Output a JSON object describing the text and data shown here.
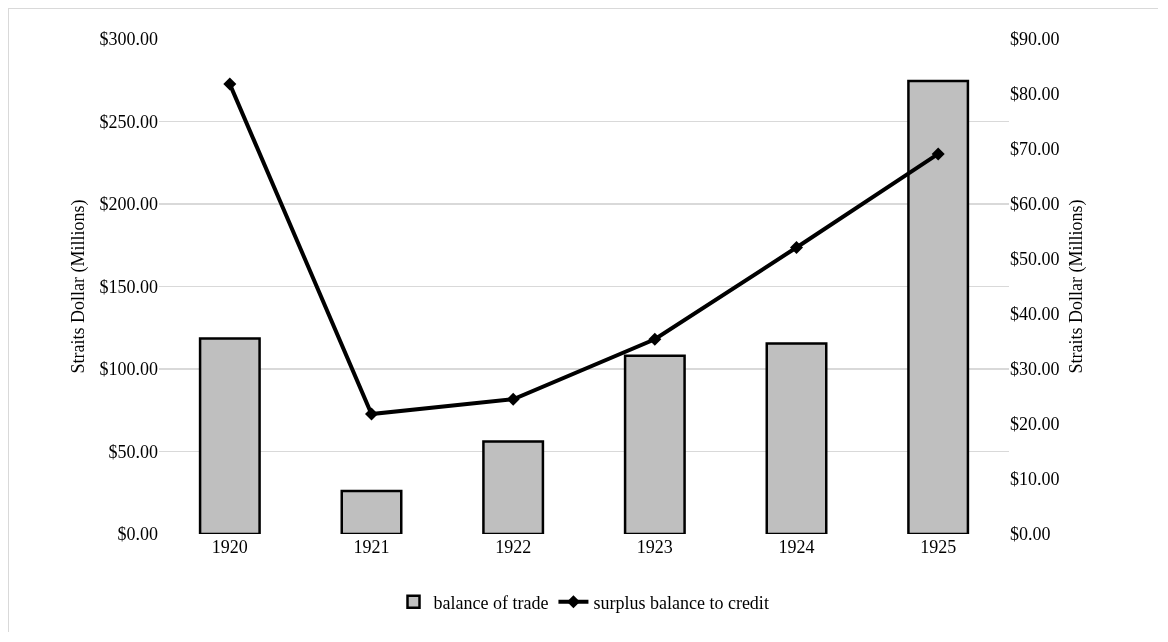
{
  "chart_data": {
    "type": "bar",
    "categories": [
      "1920",
      "1921",
      "1922",
      "1923",
      "1924",
      "1925"
    ],
    "ylabel": "Straits Dollar (Millions)",
    "y2label": "Straits Dollar (Millions)",
    "series": [
      {
        "name": "balance of trade",
        "color": "#bfbfbf",
        "values": [
          118.5,
          26,
          56,
          108,
          115.5,
          274.5
        ]
      },
      {
        "name": "surplus balance to credit",
        "type": "line",
        "axis": "y2",
        "color": "#000000",
        "marker": "diamond",
        "values": [
          81.8,
          21.8,
          24.5,
          35.4,
          52.1,
          69.1
        ]
      }
    ],
    "ylim": [
      0,
      300
    ],
    "yticks": [
      {
        "value": 0,
        "label": "$0.00"
      },
      {
        "value": 50,
        "label": "$50.00"
      },
      {
        "value": 100,
        "label": "$100.00"
      },
      {
        "value": 150,
        "label": "$150.00"
      },
      {
        "value": 200,
        "label": "$200.00"
      },
      {
        "value": 250,
        "label": "$250.00"
      },
      {
        "value": 300,
        "label": "$300.00"
      }
    ],
    "y2lim": [
      0,
      90
    ],
    "y2ticks": [
      {
        "value": 0,
        "label": "$0.00"
      },
      {
        "value": 10,
        "label": "$10.00"
      },
      {
        "value": 20,
        "label": "$20.00"
      },
      {
        "value": 30,
        "label": "$30.00"
      },
      {
        "value": 40,
        "label": "$40.00"
      },
      {
        "value": 50,
        "label": "$50.00"
      },
      {
        "value": 60,
        "label": "$60.00"
      },
      {
        "value": 70,
        "label": "$70.00"
      },
      {
        "value": 80,
        "label": "$80.00"
      },
      {
        "value": 90,
        "label": "$90.00"
      }
    ],
    "grid": "y",
    "legend": "bottom"
  }
}
